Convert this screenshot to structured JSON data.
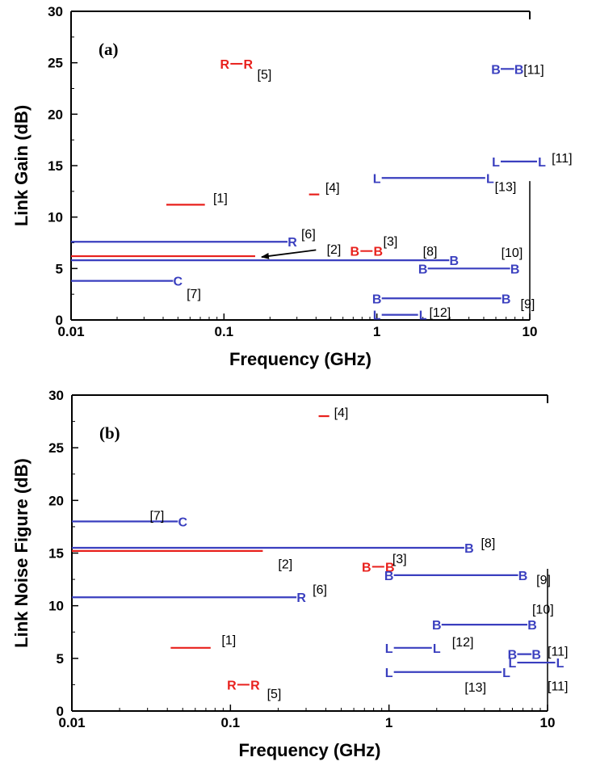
{
  "chart_data": [
    {
      "type": "line",
      "panel_label": "(a)",
      "xlabel": "Frequency (GHz)",
      "ylabel": "Link Gain (dB)",
      "xscale": "log",
      "xlim": [
        0.01,
        10
      ],
      "ylim": [
        0,
        30
      ],
      "x_ticks": [
        "0.01",
        "0.1",
        "1",
        "10"
      ],
      "y_ticks": [
        "0",
        "5",
        "10",
        "15",
        "20",
        "25",
        "30"
      ],
      "colors": {
        "red": "#e8201c",
        "blue": "#3a3fbf"
      },
      "series": [
        {
          "ref": "[1]",
          "color": "red",
          "x": [
            0.042,
            0.075
          ],
          "y": [
            11.2,
            11.2
          ],
          "markers": [],
          "marker_pos": ""
        },
        {
          "ref": "[2]",
          "color": "red",
          "x": [
            0.01,
            0.16
          ],
          "y": [
            6.2,
            6.2
          ],
          "markers": [],
          "marker_pos": "",
          "arrow_from": [
            0.4,
            6.8
          ]
        },
        {
          "ref": "[3]",
          "color": "red",
          "x": [
            0.85,
            0.85
          ],
          "y": [
            6.7,
            6.7
          ],
          "markers": [
            "B-B"
          ],
          "marker_pos": ""
        },
        {
          "ref": "[4]",
          "color": "red",
          "x": [
            0.36,
            0.42
          ],
          "y": [
            12.2,
            12.2
          ],
          "markers": [],
          "marker_pos": ""
        },
        {
          "ref": "[5]",
          "color": "red",
          "x": [
            0.12,
            0.12
          ],
          "y": [
            24.9,
            24.9
          ],
          "markers": [
            "R-R"
          ],
          "marker_pos": ""
        },
        {
          "ref": "[6]",
          "color": "blue",
          "x": [
            0.01,
            0.28
          ],
          "y": [
            7.6,
            7.6
          ],
          "markers": [
            "R"
          ],
          "marker_pos": "end"
        },
        {
          "ref": "[7]",
          "color": "blue",
          "x": [
            0.01,
            0.05
          ],
          "y": [
            3.8,
            3.8
          ],
          "markers": [
            "C"
          ],
          "marker_pos": "end"
        },
        {
          "ref": "[8]",
          "color": "blue",
          "x": [
            0.01,
            3.2
          ],
          "y": [
            5.8,
            5.8
          ],
          "markers": [
            "B"
          ],
          "marker_pos": "end"
        },
        {
          "ref": "[9]",
          "color": "blue",
          "x": [
            1.0,
            7.0
          ],
          "y": [
            2.1,
            2.1
          ],
          "markers": [
            "B",
            "B"
          ],
          "marker_pos": "both"
        },
        {
          "ref": "[10]",
          "color": "blue",
          "x": [
            2.0,
            8.0
          ],
          "y": [
            5.0,
            5.0
          ],
          "markers": [
            "B",
            "B"
          ],
          "marker_pos": "both"
        },
        {
          "ref": "[11]",
          "color": "blue",
          "x": [
            6.0,
            8.5
          ],
          "y": [
            24.4,
            24.4
          ],
          "markers": [
            "B",
            "B"
          ],
          "marker_pos": "both"
        },
        {
          "ref": "[11]",
          "color": "blue",
          "x": [
            6.0,
            12.0
          ],
          "y": [
            15.4,
            15.4
          ],
          "markers": [
            "L",
            "L"
          ],
          "marker_pos": "both"
        },
        {
          "ref": "[12]",
          "color": "blue",
          "x": [
            1.0,
            2.0
          ],
          "y": [
            0.5,
            0.5
          ],
          "markers": [
            "L",
            "L"
          ],
          "marker_pos": "both"
        },
        {
          "ref": "[13]",
          "color": "blue",
          "x": [
            1.0,
            5.5
          ],
          "y": [
            13.8,
            13.8
          ],
          "markers": [
            "L",
            "L"
          ],
          "marker_pos": "both"
        }
      ],
      "ref_labels": [
        {
          "text": "[1]",
          "x": 0.085,
          "y": 11.9
        },
        {
          "text": "[2]",
          "x": 0.47,
          "y": 6.9
        },
        {
          "text": "[3]",
          "x": 1.1,
          "y": 7.7
        },
        {
          "text": "[4]",
          "x": 0.46,
          "y": 12.9
        },
        {
          "text": "[5]",
          "x": 0.165,
          "y": 23.9
        },
        {
          "text": "[6]",
          "x": 0.32,
          "y": 8.4
        },
        {
          "text": "[7]",
          "x": 0.057,
          "y": 2.6
        },
        {
          "text": "[8]",
          "x": 2.0,
          "y": 6.7
        },
        {
          "text": "[9]",
          "x": 8.7,
          "y": 1.6
        },
        {
          "text": "[10]",
          "x": 6.5,
          "y": 6.6
        },
        {
          "text": "[11]",
          "x": 9.1,
          "y": 24.4
        },
        {
          "text": "[11]",
          "x": 13.9,
          "y": 15.8
        },
        {
          "text": "[12]",
          "x": 2.2,
          "y": 0.8
        },
        {
          "text": "[13]",
          "x": 5.9,
          "y": 13.0
        }
      ]
    },
    {
      "type": "line",
      "panel_label": "(b)",
      "xlabel": "Frequency (GHz)",
      "ylabel": "Link Noise Figure (dB)",
      "xscale": "log",
      "xlim": [
        0.01,
        10
      ],
      "ylim": [
        0,
        30
      ],
      "x_ticks": [
        "0.01",
        "0.1",
        "1",
        "10"
      ],
      "y_ticks": [
        "0",
        "5",
        "10",
        "15",
        "20",
        "25",
        "30"
      ],
      "colors": {
        "red": "#e8201c",
        "blue": "#3a3fbf"
      },
      "series": [
        {
          "ref": "[1]",
          "color": "red",
          "x": [
            0.042,
            0.075
          ],
          "y": [
            6.0,
            6.0
          ],
          "markers": [],
          "marker_pos": ""
        },
        {
          "ref": "[2]",
          "color": "red",
          "x": [
            0.01,
            0.16
          ],
          "y": [
            15.2,
            15.2
          ],
          "markers": [],
          "marker_pos": ""
        },
        {
          "ref": "[3]",
          "color": "red",
          "x": [
            0.85,
            0.85
          ],
          "y": [
            13.7,
            13.7
          ],
          "markers": [
            "B-B"
          ],
          "marker_pos": ""
        },
        {
          "ref": "[4]",
          "color": "red",
          "x": [
            0.36,
            0.42
          ],
          "y": [
            28.0,
            28.0
          ],
          "markers": [],
          "marker_pos": ""
        },
        {
          "ref": "[5]",
          "color": "red",
          "x": [
            0.12,
            0.12
          ],
          "y": [
            2.5,
            2.5
          ],
          "markers": [
            "R-R"
          ],
          "marker_pos": ""
        },
        {
          "ref": "[6]",
          "color": "blue",
          "x": [
            0.01,
            0.28
          ],
          "y": [
            10.8,
            10.8
          ],
          "markers": [
            "R"
          ],
          "marker_pos": "end"
        },
        {
          "ref": "[7]",
          "color": "blue",
          "x": [
            0.01,
            0.05
          ],
          "y": [
            18.0,
            18.0
          ],
          "markers": [
            "C"
          ],
          "marker_pos": "end"
        },
        {
          "ref": "[8]",
          "color": "blue",
          "x": [
            0.01,
            3.2
          ],
          "y": [
            15.5,
            15.5
          ],
          "markers": [
            "B"
          ],
          "marker_pos": "end"
        },
        {
          "ref": "[9]",
          "color": "blue",
          "x": [
            1.0,
            7.0
          ],
          "y": [
            12.9,
            12.9
          ],
          "markers": [
            "B",
            "B"
          ],
          "marker_pos": "both"
        },
        {
          "ref": "[10]",
          "color": "blue",
          "x": [
            2.0,
            8.0
          ],
          "y": [
            8.2,
            8.2
          ],
          "markers": [
            "B",
            "B"
          ],
          "marker_pos": "both"
        },
        {
          "ref": "[11]",
          "color": "blue",
          "x": [
            6.0,
            8.5
          ],
          "y": [
            5.4,
            5.4
          ],
          "markers": [
            "B",
            "B"
          ],
          "marker_pos": "both"
        },
        {
          "ref": "[11]",
          "color": "blue",
          "x": [
            6.0,
            12.0
          ],
          "y": [
            4.6,
            4.6
          ],
          "markers": [
            "L",
            "L"
          ],
          "marker_pos": "both"
        },
        {
          "ref": "[12]",
          "color": "blue",
          "x": [
            1.0,
            2.0
          ],
          "y": [
            6.0,
            6.0
          ],
          "markers": [
            "L",
            "L"
          ],
          "marker_pos": "both"
        },
        {
          "ref": "[13]",
          "color": "blue",
          "x": [
            1.0,
            5.5
          ],
          "y": [
            3.7,
            3.7
          ],
          "markers": [
            "L",
            "L"
          ],
          "marker_pos": "both"
        }
      ],
      "ref_labels": [
        {
          "text": "[1]",
          "x": 0.088,
          "y": 6.8
        },
        {
          "text": "[2]",
          "x": 0.2,
          "y": 14.0
        },
        {
          "text": "[3]",
          "x": 1.05,
          "y": 14.5
        },
        {
          "text": "[4]",
          "x": 0.45,
          "y": 28.4
        },
        {
          "text": "[5]",
          "x": 0.17,
          "y": 1.7
        },
        {
          "text": "[6]",
          "x": 0.33,
          "y": 11.6
        },
        {
          "text": "[7]",
          "x": 0.031,
          "y": 18.6
        },
        {
          "text": "[8]",
          "x": 3.8,
          "y": 16.0
        },
        {
          "text": "[9]",
          "x": 8.5,
          "y": 12.5
        },
        {
          "text": "[10]",
          "x": 8.0,
          "y": 9.7
        },
        {
          "text": "[11]",
          "x": 10.0,
          "y": 5.7
        },
        {
          "text": "[11]",
          "x": 10.0,
          "y": 2.4
        },
        {
          "text": "[12]",
          "x": 2.5,
          "y": 6.6
        },
        {
          "text": "[13]",
          "x": 3.0,
          "y": 2.3
        }
      ]
    }
  ]
}
